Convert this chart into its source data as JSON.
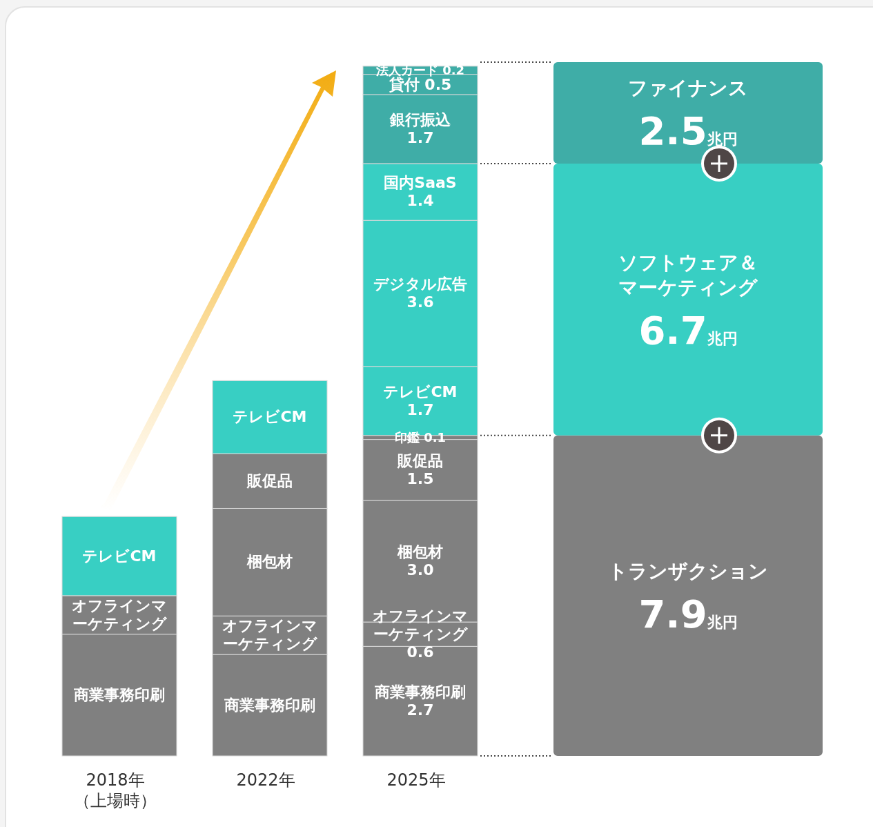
{
  "chart_data": [
    {
      "type": "bar",
      "stacked": true,
      "categories": [
        "2018年（上場時）",
        "2022年",
        "2025年"
      ],
      "series": [
        {
          "name": "商業事務印刷",
          "color": "#808080",
          "values": [
            3.0,
            2.5,
            2.7
          ],
          "value_labels": [
            null,
            null,
            "2.7"
          ]
        },
        {
          "name": "オフラインマーケティング",
          "color": "#808080",
          "values": [
            0.95,
            0.95,
            0.6
          ],
          "value_labels": [
            null,
            null,
            "0.6"
          ]
        },
        {
          "name": "梱包材",
          "color": "#808080",
          "values": [
            null,
            2.65,
            3.0
          ],
          "value_labels": [
            null,
            null,
            "3.0"
          ]
        },
        {
          "name": "販促品",
          "color": "#808080",
          "values": [
            null,
            1.35,
            1.5
          ],
          "value_labels": [
            null,
            null,
            "1.5"
          ]
        },
        {
          "name": "印鑑",
          "color": "#808080",
          "values": [
            null,
            null,
            0.1
          ],
          "value_labels": [
            null,
            null,
            "0.1"
          ]
        },
        {
          "name": "テレビCM",
          "color": "#38cfc3",
          "values": [
            1.95,
            1.8,
            1.7
          ],
          "value_labels": [
            null,
            null,
            "1.7"
          ]
        },
        {
          "name": "デジタル広告",
          "color": "#38cfc3",
          "values": [
            null,
            null,
            3.6
          ],
          "value_labels": [
            null,
            null,
            "3.6"
          ]
        },
        {
          "name": "国内SaaS",
          "color": "#38cfc3",
          "values": [
            null,
            null,
            1.4
          ],
          "value_labels": [
            null,
            null,
            "1.4"
          ]
        },
        {
          "name": "銀行振込",
          "color": "#3fada7",
          "values": [
            null,
            null,
            1.7
          ],
          "value_labels": [
            null,
            null,
            "1.7"
          ]
        },
        {
          "name": "貸付",
          "color": "#3fada7",
          "values": [
            null,
            null,
            0.5
          ],
          "value_labels": [
            null,
            null,
            "0.5"
          ]
        },
        {
          "name": "法人カード",
          "color": "#3fada7",
          "values": [
            null,
            null,
            0.2
          ],
          "value_labels": [
            null,
            null,
            "0.2"
          ]
        }
      ]
    },
    {
      "type": "bar",
      "stacked": true,
      "categories": [
        null
      ],
      "series": [
        {
          "name": "トランザクション",
          "color": "#808080",
          "values": [
            7.9
          ],
          "value_labels": [
            "7.9兆円"
          ]
        },
        {
          "name": "ソフトウェア＆マーケティング",
          "color": "#38cfc3",
          "values": [
            6.7
          ],
          "value_labels": [
            "6.7兆円"
          ]
        },
        {
          "name": "ファイナンス",
          "color": "#3fada7",
          "values": [
            2.5
          ],
          "value_labels": [
            "2.5兆円"
          ]
        }
      ]
    }
  ]
}
